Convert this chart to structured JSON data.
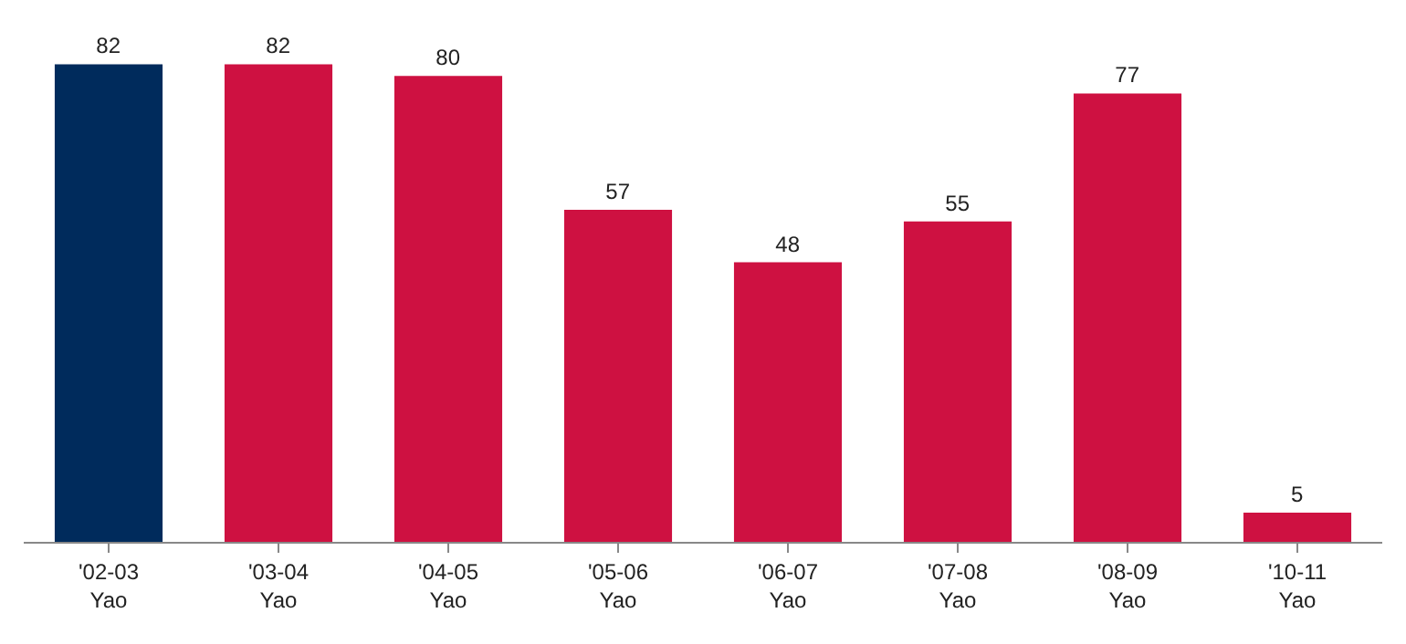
{
  "chart_data": {
    "type": "bar",
    "categories": [
      "'02-03\nYao",
      "'03-04\nYao",
      "'04-05\nYao",
      "'05-06\nYao",
      "'06-07\nYao",
      "'07-08\nYao",
      "'08-09\nYao",
      "'10-11\nYao"
    ],
    "values": [
      82,
      82,
      80,
      57,
      48,
      55,
      77,
      5
    ],
    "colors": [
      "#002b5c",
      "#ce1141",
      "#ce1141",
      "#ce1141",
      "#ce1141",
      "#ce1141",
      "#ce1141",
      "#ce1141"
    ],
    "data_labels": true
  }
}
